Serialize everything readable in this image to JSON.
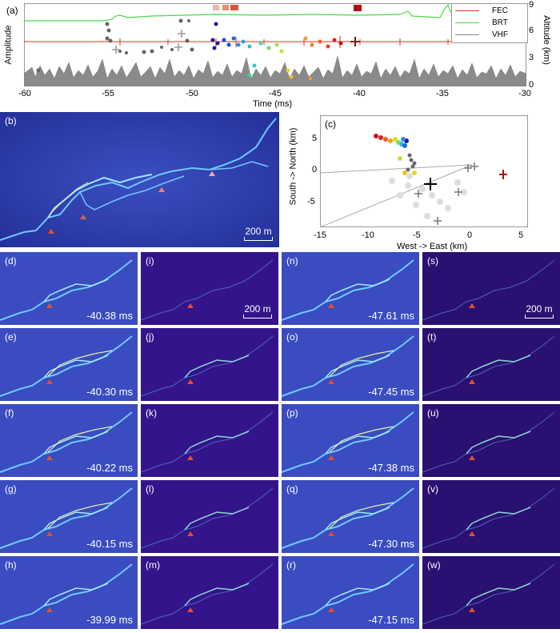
{
  "panel_a": {
    "label": "(a)",
    "ylabel_left": "Amplitude",
    "ylabel_right": "Altitude (km)",
    "xlabel": "Time (ms)",
    "xticks": [
      "-60",
      "-55",
      "-50",
      "-45",
      "-40",
      "-35",
      "-30"
    ],
    "yticks_right": [
      "0",
      "3",
      "6",
      "9"
    ],
    "legend": [
      {
        "name": "FEC",
        "color": "#e0301e"
      },
      {
        "name": "BRT",
        "color": "#4cd64c"
      },
      {
        "name": "VHF",
        "color": "#888888"
      }
    ]
  },
  "panel_b": {
    "label": "(b)",
    "scale": "200 m"
  },
  "panel_c": {
    "label": "(c)",
    "xlabel": "West -> East (km)",
    "ylabel": "South -> North (km)",
    "xticks": [
      "-15",
      "-10",
      "-5",
      "0",
      "5"
    ],
    "yticks": [
      "5",
      "0",
      "-5"
    ]
  },
  "tiles": [
    {
      "label": "(d)",
      "time": "-40.38 ms"
    },
    {
      "label": "(i)",
      "time": "",
      "scale": "200 m"
    },
    {
      "label": "(n)",
      "time": "-47.61 ms"
    },
    {
      "label": "(s)",
      "time": "",
      "scale": "200 m"
    },
    {
      "label": "(e)",
      "time": "-40.30 ms"
    },
    {
      "label": "(j)",
      "time": ""
    },
    {
      "label": "(o)",
      "time": "-47.45 ms"
    },
    {
      "label": "(t)",
      "time": ""
    },
    {
      "label": "(f)",
      "time": "-40.22 ms"
    },
    {
      "label": "(k)",
      "time": ""
    },
    {
      "label": "(p)",
      "time": "-47.38 ms"
    },
    {
      "label": "(u)",
      "time": ""
    },
    {
      "label": "(g)",
      "time": "-40.15 ms"
    },
    {
      "label": "(l)",
      "time": ""
    },
    {
      "label": "(q)",
      "time": "-47.30 ms"
    },
    {
      "label": "(v)",
      "time": ""
    },
    {
      "label": "(h)",
      "time": "-39.99 ms"
    },
    {
      "label": "(m)",
      "time": ""
    },
    {
      "label": "(r)",
      "time": "-47.15 ms"
    },
    {
      "label": "(w)",
      "time": ""
    }
  ]
}
